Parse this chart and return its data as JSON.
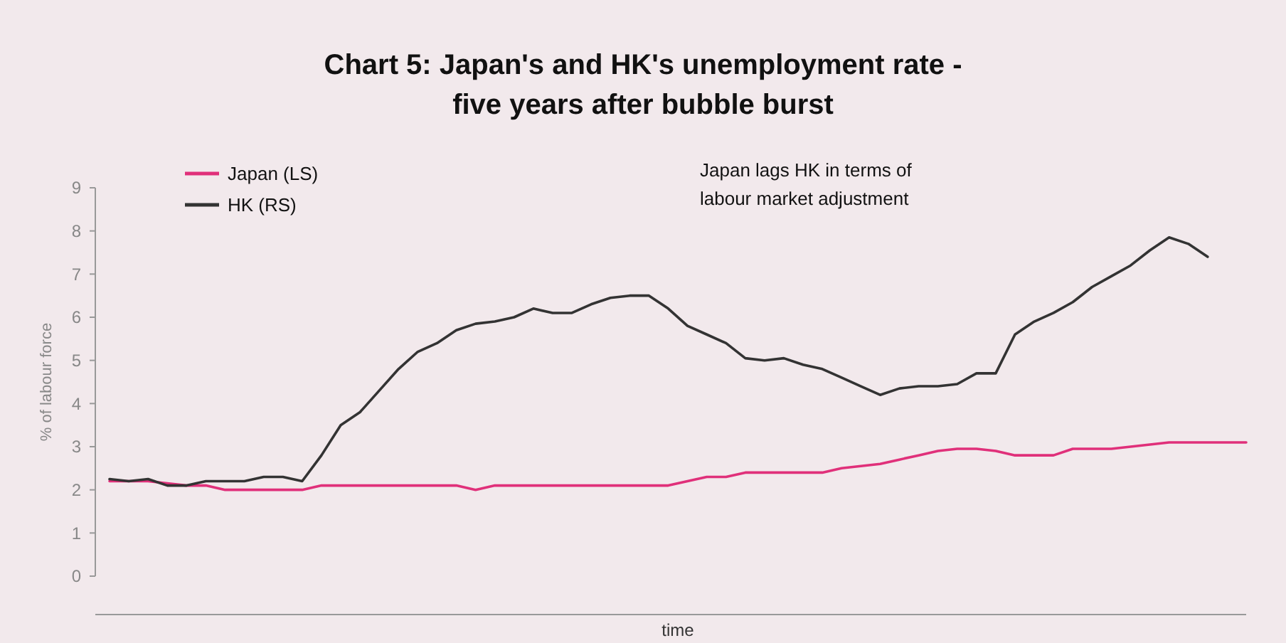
{
  "chart_data": {
    "type": "line",
    "title": "Chart 5: Japan's and HK's unemployment rate -\nfive years after bubble burst",
    "xlabel": "time",
    "ylabel": "% of labour force",
    "annotations": [
      "Japan lags HK in terms of\nlabour market adjustment"
    ],
    "categories": [
      null,
      null,
      null,
      null,
      null,
      null,
      null,
      null,
      null,
      null,
      null,
      null,
      null,
      null,
      null,
      null,
      null,
      null,
      null,
      null,
      null,
      null,
      null,
      null,
      null,
      null,
      null,
      null,
      null,
      null,
      null,
      null,
      null,
      null,
      null,
      null,
      null,
      null,
      null,
      null,
      null,
      null,
      null,
      null,
      null,
      null,
      null,
      null,
      null,
      null,
      null,
      null,
      null,
      null,
      null,
      null,
      null,
      null,
      null,
      null
    ],
    "series": [
      {
        "name": "Japan (LS)",
        "color": "#e0307a",
        "values": [
          2.2,
          2.2,
          2.2,
          2.15,
          2.1,
          2.1,
          2.0,
          2.0,
          2.0,
          2.0,
          2.0,
          2.1,
          2.1,
          2.1,
          2.1,
          2.1,
          2.1,
          2.1,
          2.1,
          2.0,
          2.1,
          2.1,
          2.1,
          2.1,
          2.1,
          2.1,
          2.1,
          2.1,
          2.1,
          2.1,
          2.2,
          2.3,
          2.3,
          2.4,
          2.4,
          2.4,
          2.4,
          2.4,
          2.5,
          2.55,
          2.6,
          2.7,
          2.8,
          2.9,
          2.95,
          2.95,
          2.9,
          2.8,
          2.8,
          2.8,
          2.95,
          2.95,
          2.95,
          3.0,
          3.05,
          3.1,
          3.1,
          3.1,
          3.1,
          3.1
        ]
      },
      {
        "name": "HK (RS)",
        "color": "#333333",
        "values": [
          2.25,
          2.2,
          2.25,
          2.1,
          2.1,
          2.2,
          2.2,
          2.2,
          2.3,
          2.3,
          2.2,
          2.8,
          3.5,
          3.8,
          4.3,
          4.8,
          5.2,
          5.4,
          5.7,
          5.85,
          5.9,
          6.0,
          6.2,
          6.1,
          6.1,
          6.3,
          6.45,
          6.5,
          6.5,
          6.2,
          5.8,
          5.6,
          5.4,
          5.05,
          5.0,
          5.05,
          4.9,
          4.8,
          4.6,
          4.4,
          4.2,
          4.35,
          4.4,
          4.4,
          4.45,
          4.7,
          4.7,
          5.6,
          5.9,
          6.1,
          6.35,
          6.7,
          6.95,
          7.2,
          7.55,
          7.85,
          7.7,
          7.4,
          null,
          null
        ]
      }
    ],
    "ylim": [
      0,
      9
    ],
    "yticks": [
      0,
      1,
      2,
      3,
      4,
      5,
      6,
      7,
      8,
      9
    ],
    "grid": false,
    "legend": "top left",
    "tick_labels": "y"
  }
}
